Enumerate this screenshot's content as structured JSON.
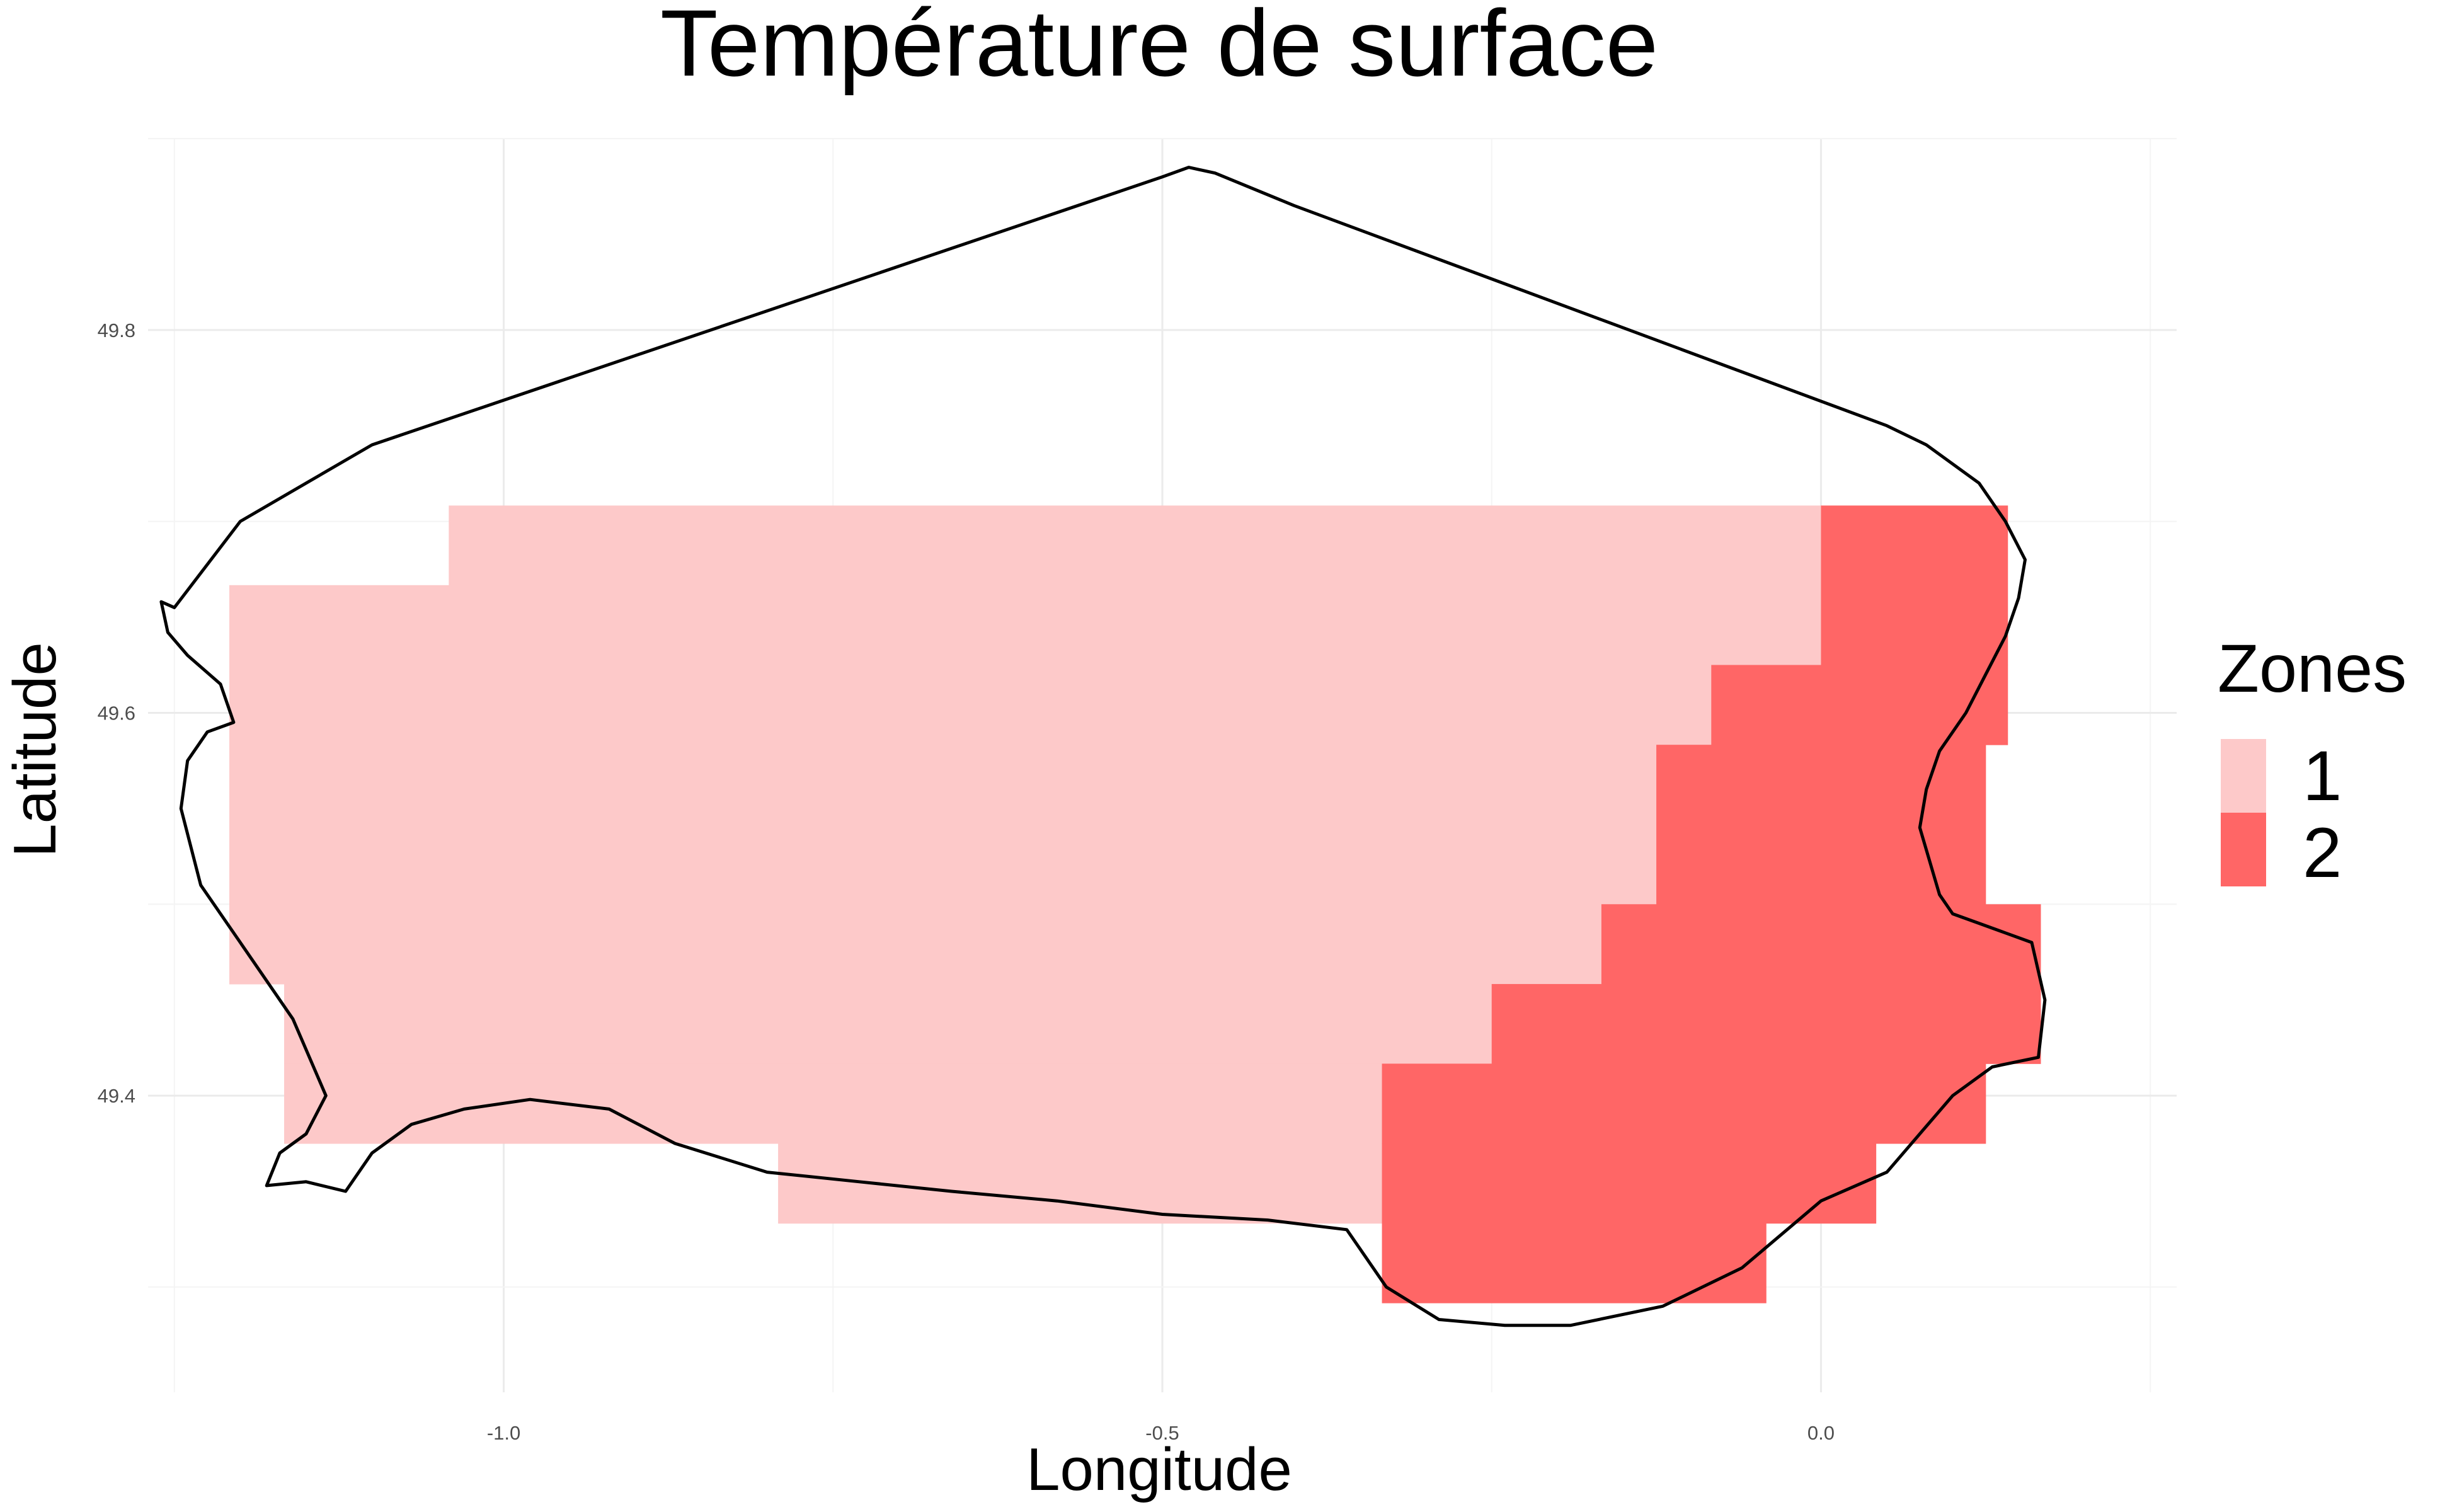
{
  "chart_data": {
    "type": "heatmap",
    "title": "Température de surface",
    "xlabel": "Longitude",
    "ylabel": "Latitude",
    "xlim": [
      -1.27,
      0.27
    ],
    "ylim": [
      49.245,
      49.9
    ],
    "x_ticks": [
      -1.0,
      -0.5,
      0.0
    ],
    "x_tick_labels": [
      "-1.0",
      "-0.5",
      "0.0"
    ],
    "y_ticks": [
      49.4,
      49.6,
      49.8
    ],
    "y_tick_labels": [
      "49.4",
      "49.6",
      "49.8"
    ],
    "grid": true,
    "legend": {
      "title": "Zones",
      "position": "right",
      "entries": [
        {
          "label": "1",
          "color": "#fdc9c9"
        },
        {
          "label": "2",
          "color": "#ff6666"
        }
      ]
    },
    "cell_width_deg": 0.0833,
    "cell_height_deg": 0.0417,
    "zones": [
      {
        "zone": "1",
        "color": "#fdc9c9",
        "rects": [
          [
            -1.0417,
            49.5833,
            0.0,
            49.7083
          ],
          [
            -1.2083,
            49.5833,
            -1.0417,
            49.6667
          ],
          [
            -1.2083,
            49.5,
            -0.0833,
            49.5833
          ],
          [
            -1.2083,
            49.4583,
            -0.125,
            49.5
          ],
          [
            -1.1667,
            49.4167,
            -0.1667,
            49.4583
          ],
          [
            -1.1667,
            49.375,
            -0.25,
            49.4167
          ],
          [
            -0.7917,
            49.3333,
            -0.3333,
            49.375
          ]
        ]
      },
      {
        "zone": "2",
        "color": "#ff6666",
        "rects": [
          [
            0.0,
            49.625,
            0.1417,
            49.7083
          ],
          [
            -0.0833,
            49.5833,
            0.1417,
            49.625
          ],
          [
            -0.125,
            49.5,
            0.125,
            49.5833
          ],
          [
            -0.1667,
            49.4583,
            0.1667,
            49.5
          ],
          [
            -0.25,
            49.4167,
            0.1667,
            49.4583
          ],
          [
            -0.3333,
            49.375,
            0.125,
            49.4167
          ],
          [
            -0.3333,
            49.3333,
            0.0417,
            49.375
          ],
          [
            -0.3333,
            49.2917,
            -0.0417,
            49.3333
          ]
        ]
      }
    ],
    "coastline": [
      [
        -1.26,
        49.658
      ],
      [
        -1.25,
        49.655
      ],
      [
        -1.2,
        49.7
      ],
      [
        -1.1,
        49.74
      ],
      [
        -0.5,
        49.88
      ],
      [
        -0.48,
        49.885
      ],
      [
        -0.46,
        49.882
      ],
      [
        -0.4,
        49.865
      ],
      [
        0.05,
        49.75
      ],
      [
        0.08,
        49.74
      ],
      [
        0.12,
        49.72
      ],
      [
        0.14,
        49.7
      ],
      [
        0.155,
        49.68
      ],
      [
        0.15,
        49.66
      ],
      [
        0.14,
        49.64
      ],
      [
        0.125,
        49.62
      ],
      [
        0.11,
        49.6
      ],
      [
        0.09,
        49.58
      ],
      [
        0.08,
        49.56
      ],
      [
        0.075,
        49.54
      ],
      [
        0.09,
        49.505
      ],
      [
        0.1,
        49.495
      ],
      [
        0.12,
        49.49
      ],
      [
        0.14,
        49.485
      ],
      [
        0.16,
        49.48
      ],
      [
        0.17,
        49.45
      ],
      [
        0.165,
        49.42
      ],
      [
        0.13,
        49.415
      ],
      [
        0.1,
        49.4
      ],
      [
        0.05,
        49.36
      ],
      [
        0.0,
        49.345
      ],
      [
        -0.06,
        49.31
      ],
      [
        -0.12,
        49.29
      ],
      [
        -0.19,
        49.28
      ],
      [
        -0.24,
        49.28
      ],
      [
        -0.29,
        49.283
      ],
      [
        -0.33,
        49.3
      ],
      [
        -0.36,
        49.33
      ],
      [
        -0.42,
        49.335
      ],
      [
        -0.5,
        49.338
      ],
      [
        -0.58,
        49.345
      ],
      [
        -0.66,
        49.35
      ],
      [
        -0.73,
        49.355
      ],
      [
        -0.8,
        49.36
      ],
      [
        -0.87,
        49.375
      ],
      [
        -0.92,
        49.393
      ],
      [
        -0.98,
        49.398
      ],
      [
        -1.03,
        49.393
      ],
      [
        -1.07,
        49.385
      ],
      [
        -1.1,
        49.37
      ],
      [
        -1.12,
        49.35
      ],
      [
        -1.15,
        49.355
      ],
      [
        -1.18,
        49.353
      ],
      [
        -1.17,
        49.37
      ],
      [
        -1.15,
        49.38
      ],
      [
        -1.135,
        49.4
      ],
      [
        -1.16,
        49.44
      ],
      [
        -1.2,
        49.48
      ],
      [
        -1.23,
        49.51
      ],
      [
        -1.245,
        49.55
      ],
      [
        -1.24,
        49.575
      ],
      [
        -1.225,
        49.59
      ],
      [
        -1.205,
        49.595
      ],
      [
        -1.215,
        49.615
      ],
      [
        -1.24,
        49.63
      ],
      [
        -1.255,
        49.642
      ],
      [
        -1.26,
        49.658
      ]
    ]
  }
}
